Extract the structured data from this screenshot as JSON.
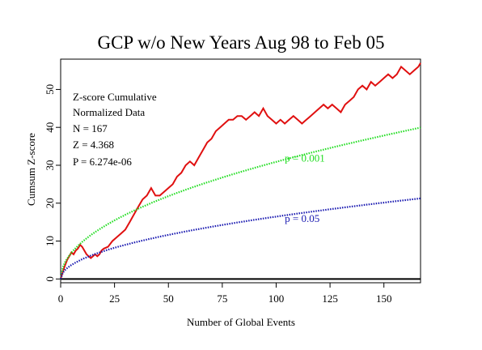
{
  "chart_data": {
    "type": "line",
    "title": "GCP w/o New Years Aug 98 to Feb 05",
    "xlabel": "Number of Global Events",
    "ylabel": "Cumsum Z-score",
    "xlim": [
      0,
      167
    ],
    "ylim": [
      -1,
      58
    ],
    "x_ticks": [
      0,
      25,
      50,
      75,
      100,
      125,
      150
    ],
    "y_ticks": [
      0,
      10,
      20,
      30,
      40,
      50
    ],
    "grid": false,
    "stats": {
      "line1": "Z-score Cumulative",
      "line2": "Normalized Data",
      "n": "N = 167",
      "z": "Z = 4.368",
      "p": "P = 6.274e-06"
    },
    "series": [
      {
        "role": "observed",
        "color": "#e01010",
        "points": [
          [
            0,
            0
          ],
          [
            1,
            2
          ],
          [
            2,
            3.5
          ],
          [
            3,
            5
          ],
          [
            4,
            6
          ],
          [
            5,
            7
          ],
          [
            6,
            6.5
          ],
          [
            7,
            7.5
          ],
          [
            8,
            8
          ],
          [
            9,
            9
          ],
          [
            10,
            8.5
          ],
          [
            11,
            7.5
          ],
          [
            12,
            6.5
          ],
          [
            13,
            6
          ],
          [
            14,
            5.5
          ],
          [
            15,
            6
          ],
          [
            16,
            6.5
          ],
          [
            17,
            6
          ],
          [
            18,
            6.5
          ],
          [
            19,
            7.5
          ],
          [
            20,
            8
          ],
          [
            22,
            8.5
          ],
          [
            24,
            10
          ],
          [
            26,
            11
          ],
          [
            28,
            12
          ],
          [
            30,
            13
          ],
          [
            32,
            15
          ],
          [
            34,
            17
          ],
          [
            36,
            19
          ],
          [
            38,
            21
          ],
          [
            40,
            22
          ],
          [
            42,
            24
          ],
          [
            44,
            22
          ],
          [
            46,
            22
          ],
          [
            48,
            23
          ],
          [
            50,
            24
          ],
          [
            52,
            25
          ],
          [
            54,
            27
          ],
          [
            56,
            28
          ],
          [
            58,
            30
          ],
          [
            60,
            31
          ],
          [
            62,
            30
          ],
          [
            64,
            32
          ],
          [
            66,
            34
          ],
          [
            68,
            36
          ],
          [
            70,
            37
          ],
          [
            72,
            39
          ],
          [
            74,
            40
          ],
          [
            76,
            41
          ],
          [
            78,
            42
          ],
          [
            80,
            42
          ],
          [
            82,
            43
          ],
          [
            84,
            43
          ],
          [
            86,
            42
          ],
          [
            88,
            43
          ],
          [
            90,
            44
          ],
          [
            92,
            43
          ],
          [
            94,
            45
          ],
          [
            96,
            43
          ],
          [
            98,
            42
          ],
          [
            100,
            41
          ],
          [
            102,
            42
          ],
          [
            104,
            41
          ],
          [
            106,
            42
          ],
          [
            108,
            43
          ],
          [
            110,
            42
          ],
          [
            112,
            41
          ],
          [
            114,
            42
          ],
          [
            116,
            43
          ],
          [
            118,
            44
          ],
          [
            120,
            45
          ],
          [
            122,
            46
          ],
          [
            124,
            45
          ],
          [
            126,
            46
          ],
          [
            128,
            45
          ],
          [
            130,
            44
          ],
          [
            132,
            46
          ],
          [
            134,
            47
          ],
          [
            136,
            48
          ],
          [
            138,
            50
          ],
          [
            140,
            51
          ],
          [
            142,
            50
          ],
          [
            144,
            52
          ],
          [
            146,
            51
          ],
          [
            148,
            52
          ],
          [
            150,
            53
          ],
          [
            152,
            54
          ],
          [
            154,
            53
          ],
          [
            156,
            54
          ],
          [
            158,
            56
          ],
          [
            160,
            55
          ],
          [
            162,
            54
          ],
          [
            164,
            55
          ],
          [
            166,
            56
          ],
          [
            167,
            57
          ]
        ]
      },
      {
        "role": "reference",
        "label": "p = 0.001",
        "color": "#22dd22",
        "coef": 3.09,
        "label_pos": [
          104,
          31
        ]
      },
      {
        "role": "reference",
        "label": "p = 0.05",
        "color": "#1818b0",
        "coef": 1.645,
        "label_pos": [
          104,
          15
        ]
      }
    ]
  }
}
